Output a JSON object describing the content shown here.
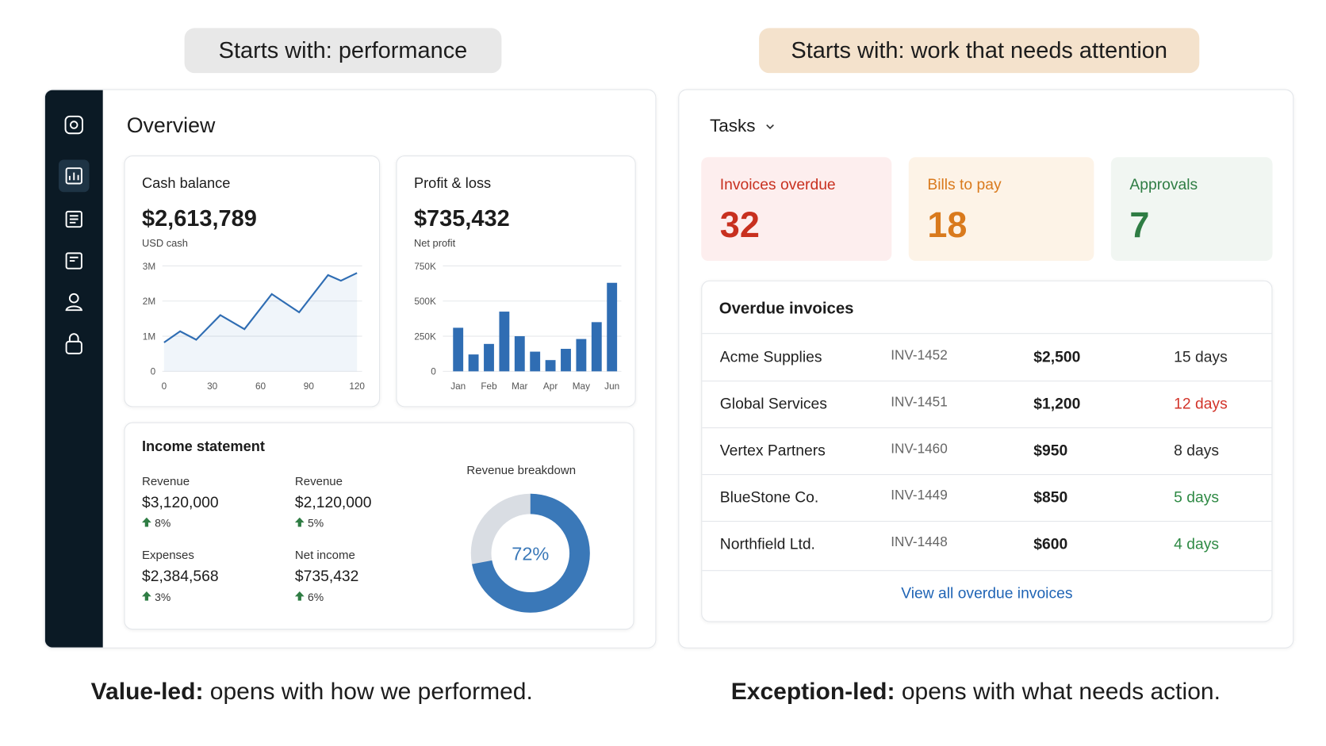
{
  "left": {
    "heading": "Starts with: performance",
    "caption_bold": "Value-led:",
    "caption": "opens with how we performed.",
    "title": "Overview",
    "cash_balance": {
      "label": "Cash balance",
      "amount": "$2,613,789",
      "sub": "USD cash",
      "chart": {
        "type": "line",
        "color": "#2f6db3",
        "x": [
          0,
          10,
          20,
          35,
          50,
          67,
          84,
          102,
          110,
          120
        ],
        "values": [
          820000,
          1140000,
          900000,
          1600000,
          1200000,
          2200000,
          1680000,
          2740000,
          2580000,
          2800000
        ],
        "xlim": [
          0,
          120
        ],
        "ylim": [
          0,
          3000000
        ],
        "xticks": [
          0,
          30,
          60,
          90,
          120
        ],
        "yticks": [
          0,
          {
            "value": 1000000,
            "label": "1M"
          },
          {
            "value": 2000000,
            "label": "2M"
          },
          {
            "value": 3000000,
            "label": "3M"
          }
        ],
        "grid": true
      }
    },
    "profit_loss": {
      "label": "Profit & loss",
      "amount": "$735,432",
      "sub": "Net profit",
      "chart": {
        "type": "bar",
        "color": "#2f6db3",
        "categories": [
          "Jan",
          null,
          "Feb",
          null,
          "Mar",
          null,
          "Apr",
          null,
          "May",
          null,
          "Jun"
        ],
        "values": [
          310000,
          120000,
          195000,
          425000,
          250000,
          140000,
          80000,
          160000,
          230000,
          350000,
          630000
        ],
        "ylim": [
          0,
          750000
        ],
        "yticks": [
          0,
          {
            "value": 250000,
            "label": "250K"
          },
          {
            "value": 500000,
            "label": "500K"
          },
          {
            "value": 750000,
            "label": "750K"
          }
        ],
        "grid": true
      }
    },
    "income_statement": {
      "title": "Income statement",
      "items": [
        {
          "label": "Revenue",
          "amount": "$3,120,000",
          "change": "8%"
        },
        {
          "label": "Revenue",
          "amount": "$2,120,000",
          "change": "5%"
        },
        {
          "label": "Expenses",
          "amount": "$2,384,568",
          "change": "3%"
        },
        {
          "label": "Net income",
          "amount": "$735,432",
          "change": "6%"
        }
      ],
      "breakdown": {
        "type": "pie",
        "title": "Revenue breakdown",
        "values": [
          72
        ],
        "value_labels": [
          "72%"
        ],
        "color": "#3a78b8"
      }
    }
  },
  "right": {
    "heading": "Starts with: work that needs attention",
    "caption_bold": "Exception-led:",
    "caption": "opens with what needs action.",
    "title": "Tasks",
    "cards": [
      {
        "label": "Invoices overdue",
        "count": "32",
        "color": "#c8301f"
      },
      {
        "label": "Bills to pay",
        "count": "18",
        "color": "#d97a1d"
      },
      {
        "label": "Approvals",
        "count": "7",
        "color": "#2f7d44"
      }
    ],
    "overdue": {
      "title": "Overdue invoices",
      "rows": [
        [
          "Acme Supplies",
          "INV-1452",
          "$2,500",
          "15 days"
        ],
        [
          "Global Services",
          "INV-1451",
          "$1,200",
          "12 days"
        ],
        [
          "Vertex Partners",
          "INV-1460",
          "$950",
          "8 days"
        ],
        [
          "BlueStone Co.",
          "INV-1449",
          "$850",
          "5 days"
        ],
        [
          "Northfield Ltd.",
          "INV-1448",
          "$600",
          "4 days"
        ]
      ],
      "day_colors": [
        "#2a2a2a",
        "#d2342a",
        "#2a2a2a",
        "#2f8a45",
        "#2f8a45"
      ],
      "link": "View all overdue invoices"
    }
  }
}
